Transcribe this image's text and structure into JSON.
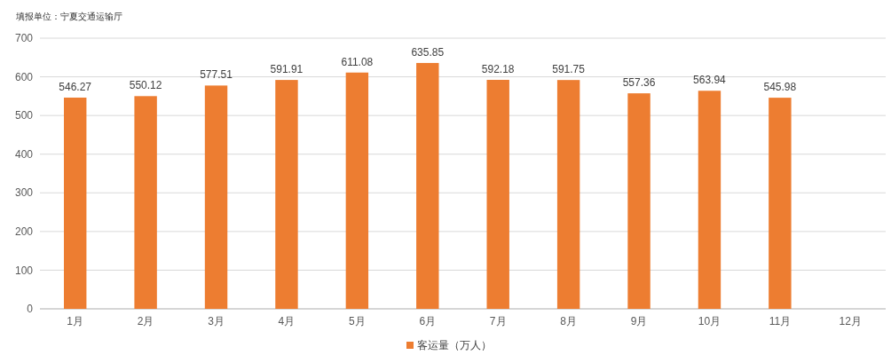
{
  "chart_data": {
    "type": "bar",
    "subtitle": "填报单位：宁夏交通运输厅",
    "categories": [
      "1月",
      "2月",
      "3月",
      "4月",
      "5月",
      "6月",
      "7月",
      "8月",
      "9月",
      "10月",
      "11月",
      "12月"
    ],
    "series": [
      {
        "name": "客运量（万人）",
        "color": "#ed7d31",
        "values": [
          546.27,
          550.12,
          577.51,
          591.91,
          611.08,
          635.85,
          592.18,
          591.75,
          557.36,
          563.94,
          545.98,
          null
        ]
      }
    ],
    "ylim": [
      0,
      700
    ],
    "yticks": [
      0,
      100,
      200,
      300,
      400,
      500,
      600,
      700
    ],
    "grid": "y",
    "legend": "bottom",
    "data_labels": true
  }
}
